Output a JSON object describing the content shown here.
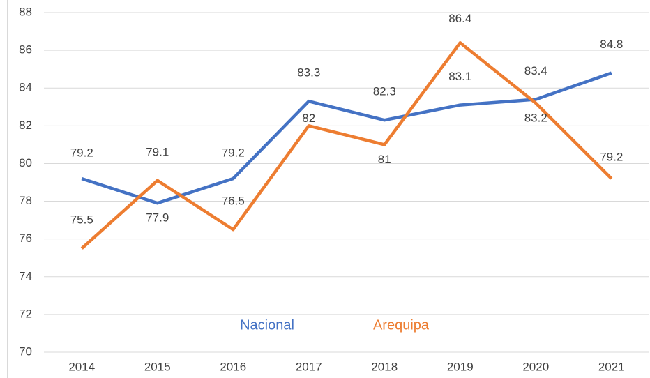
{
  "chart_data": {
    "type": "line",
    "categories": [
      "2014",
      "2015",
      "2016",
      "2017",
      "2018",
      "2019",
      "2020",
      "2021"
    ],
    "series": [
      {
        "name": "Nacional",
        "color": "#4472c4",
        "values": [
          79.2,
          77.9,
          79.2,
          83.3,
          82.3,
          83.1,
          83.4,
          84.8
        ]
      },
      {
        "name": "Arequipa",
        "color": "#ed7d31",
        "values": [
          75.5,
          79.1,
          76.5,
          82,
          81,
          86.4,
          83.2,
          79.2
        ]
      }
    ],
    "ylim": [
      70,
      88
    ],
    "yticks": [
      70,
      72,
      74,
      76,
      78,
      80,
      82,
      84,
      86,
      88
    ],
    "grid": true,
    "legend": "bottom"
  }
}
